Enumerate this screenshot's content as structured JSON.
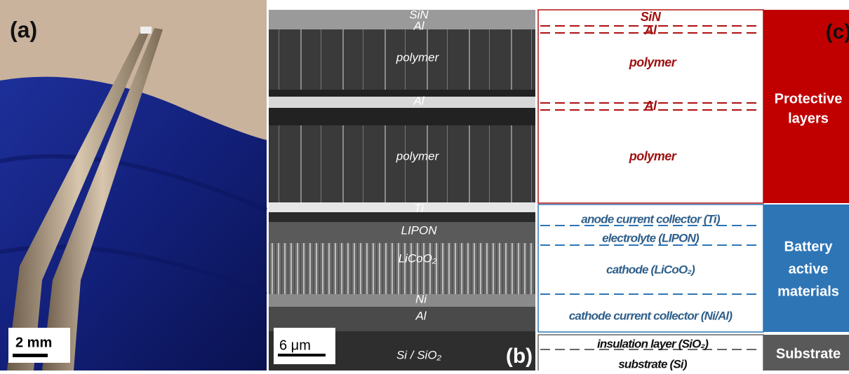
{
  "panel_a": {
    "label": "(a)",
    "scale": "2 mm"
  },
  "panel_b": {
    "label": "(b)",
    "scale": "6 μm",
    "layers": [
      "SiN",
      "Al",
      "polymer",
      "Al",
      "polymer",
      "Ti",
      "LIPON",
      "LiCoO₂",
      "Ni",
      "Al",
      "Si / SiO₂"
    ]
  },
  "panel_c": {
    "label": "(c)",
    "protective": {
      "title": [
        "Protective",
        "layers"
      ],
      "layers": [
        "SiN",
        "Al",
        "polymer",
        "Al",
        "polymer"
      ]
    },
    "battery": {
      "title": [
        "Battery",
        "active",
        "materials"
      ],
      "layers": [
        "anode current collector (Ti)",
        "electrolyte (LIPON)",
        "cathode (LiCoO₂)",
        "cathode current collector (Ni/Al)"
      ]
    },
    "substrate": {
      "title": [
        "Substrate"
      ],
      "layers": [
        "insulation layer (SiO₂)",
        "substrate (Si)"
      ]
    }
  }
}
